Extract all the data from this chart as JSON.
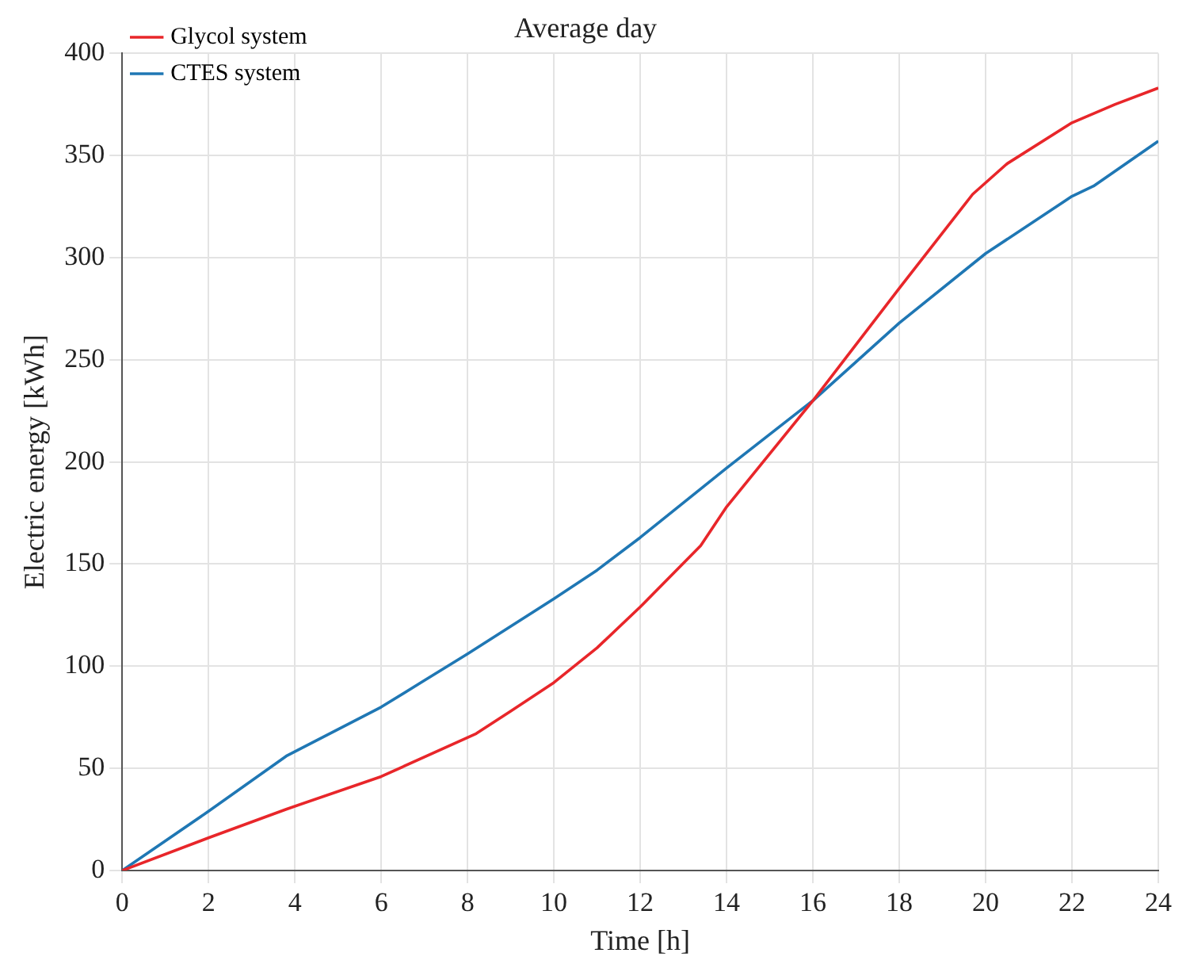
{
  "chart_data": {
    "type": "line",
    "title": "Average day",
    "xlabel": "Time [h]",
    "ylabel": "Electric energy [kWh]",
    "xlim": [
      0,
      24
    ],
    "xticks": [
      0,
      2,
      4,
      6,
      8,
      10,
      12,
      14,
      16,
      18,
      20,
      22,
      24
    ],
    "ylim": [
      0,
      400
    ],
    "yticks": [
      0,
      50,
      100,
      150,
      200,
      250,
      300,
      350,
      400
    ],
    "grid": true,
    "legend": "top left",
    "marker": "none",
    "line_style": "solid",
    "series": [
      {
        "name": "Glycol system",
        "color": "#e8262a",
        "x": [
          0,
          2,
          3.8,
          6,
          8.2,
          9,
          10,
          11,
          12,
          13.4,
          14,
          16,
          18,
          19.7,
          20.5,
          22,
          23,
          24
        ],
        "values": [
          0,
          16,
          30,
          46,
          67,
          78,
          92,
          109,
          129,
          159,
          178,
          230,
          285,
          331,
          346,
          366,
          375,
          383
        ]
      },
      {
        "name": "CTES system",
        "color": "#1f77b4",
        "x": [
          0,
          2,
          3.8,
          6,
          7,
          8,
          10,
          11,
          12,
          14,
          16,
          18,
          20,
          22,
          22.5,
          24
        ],
        "values": [
          0,
          29,
          56,
          80,
          93,
          106,
          133,
          147,
          163,
          197,
          230,
          268,
          302,
          330,
          335,
          357
        ]
      }
    ]
  }
}
